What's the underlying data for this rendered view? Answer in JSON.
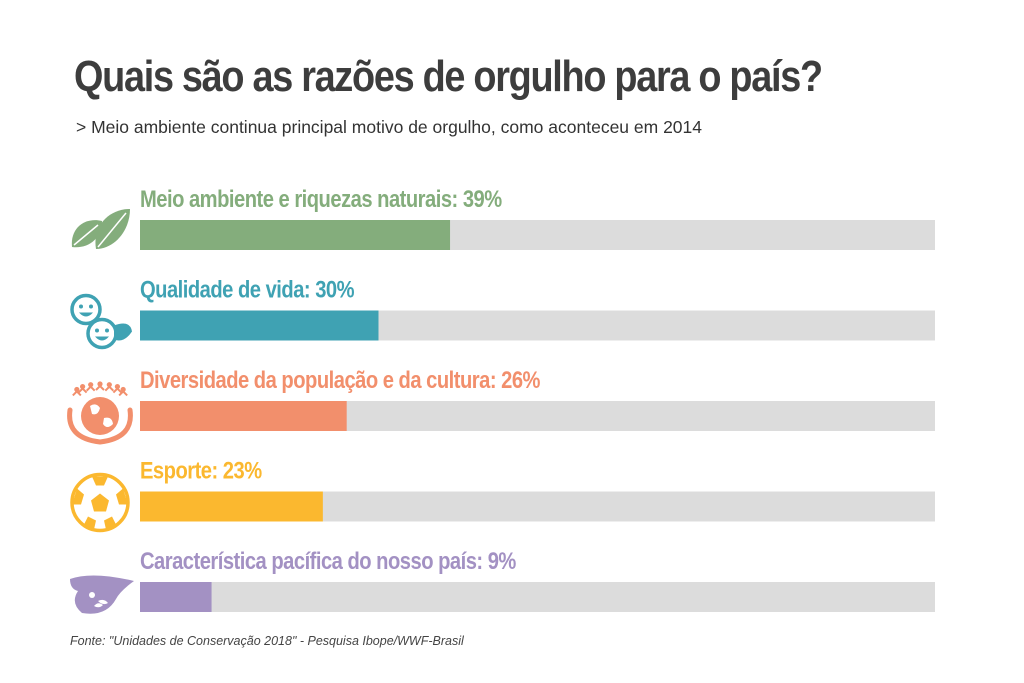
{
  "title": "Quais são as razões de orgulho para o país?",
  "subtitle": "> Meio ambiente continua principal motivo de orgulho, como aconteceu em 2014",
  "source": "Fonte: \"Unidades de Conservação 2018\" - Pesquisa Ibope/WWF-Brasil",
  "chart_data": {
    "type": "bar",
    "orientation": "horizontal",
    "xlim": [
      0,
      100
    ],
    "grid": false,
    "legend": "none",
    "categories": [
      "Meio ambiente e riquezas naturais",
      "Qualidade de vida",
      "Diversidade da população e da cultura",
      "Esporte",
      "Característica pacífica do nosso país"
    ],
    "values": [
      39,
      30,
      26,
      23,
      9
    ],
    "labels": [
      "Meio ambiente e riquezas naturais: 39%",
      "Qualidade de vida: 30%",
      "Diversidade da população e da cultura: 26%",
      "Esporte: 23%",
      "Característica pacífica do nosso país: 9%"
    ],
    "colors": [
      "#84ad7c",
      "#3fa2b3",
      "#f28f6c",
      "#fbb82f",
      "#a391c3"
    ],
    "track_color": "#dcdcdc",
    "icons": [
      "leaves-icon",
      "smiling-faces-icon",
      "globe-hands-icon",
      "soccer-ball-icon",
      "dove-icon"
    ]
  }
}
